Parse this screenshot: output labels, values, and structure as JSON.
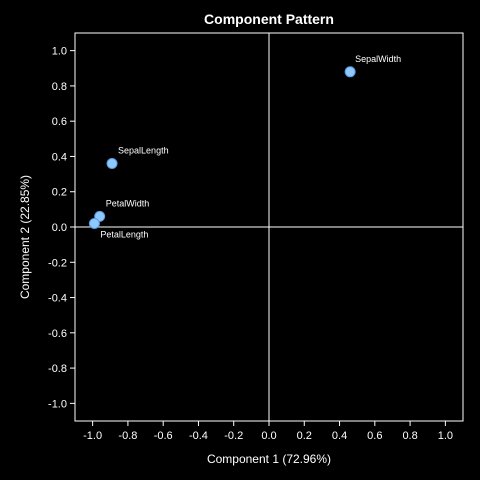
{
  "chart_data": {
    "type": "scatter",
    "title": "Component Pattern",
    "xlabel": "Component 1 (72.96%)",
    "ylabel": "Component 2 (22.85%)",
    "xlim": [
      -1.1,
      1.1
    ],
    "ylim": [
      -1.1,
      1.1
    ],
    "xticks": [
      -1.0,
      -0.8,
      -0.6,
      -0.4,
      -0.2,
      0.0,
      0.2,
      0.4,
      0.6,
      0.8,
      1.0
    ],
    "yticks": [
      -1.0,
      -0.8,
      -0.6,
      -0.4,
      -0.2,
      0.0,
      0.2,
      0.4,
      0.6,
      0.8,
      1.0
    ],
    "xtick_labels": [
      "-1.0",
      "-0.8",
      "-0.6",
      "-0.4",
      "-0.2",
      "0.0",
      "0.2",
      "0.4",
      "0.6",
      "0.8",
      "1.0"
    ],
    "ytick_labels": [
      "-1.0",
      "-0.8",
      "-0.6",
      "-0.4",
      "-0.2",
      "0.0",
      "0.2",
      "0.4",
      "0.6",
      "0.8",
      "1.0"
    ],
    "reference_lines": {
      "x": 0,
      "y": 0
    },
    "grid": false,
    "points": [
      {
        "label": "SepalWidth",
        "x": 0.46,
        "y": 0.88
      },
      {
        "label": "SepalLength",
        "x": -0.89,
        "y": 0.36
      },
      {
        "label": "PetalWidth",
        "x": -0.96,
        "y": 0.06
      },
      {
        "label": "PetalLength",
        "x": -0.99,
        "y": 0.02
      }
    ],
    "colors": {
      "background": "#000000",
      "marker": "#8ec8ff",
      "marker_stroke": "#5a9be0",
      "axis": "#ffffff",
      "text": "#ffffff"
    }
  }
}
